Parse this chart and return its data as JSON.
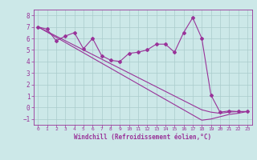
{
  "x_data": [
    0,
    1,
    2,
    3,
    4,
    5,
    6,
    7,
    8,
    9,
    10,
    11,
    12,
    13,
    14,
    15,
    16,
    17,
    18,
    19,
    20,
    21,
    22,
    23
  ],
  "y_main": [
    7.0,
    6.8,
    5.8,
    6.2,
    6.5,
    5.1,
    6.0,
    4.5,
    4.1,
    4.0,
    4.7,
    4.8,
    5.0,
    5.5,
    5.5,
    4.8,
    6.5,
    7.8,
    6.0,
    1.1,
    -0.4,
    -0.3,
    -0.35,
    -0.35
  ],
  "y_line1": [
    7.0,
    6.55,
    6.1,
    5.65,
    5.2,
    4.75,
    4.3,
    3.85,
    3.4,
    2.95,
    2.5,
    2.05,
    1.6,
    1.15,
    0.7,
    0.25,
    -0.2,
    -0.65,
    -1.1,
    -1.0,
    -0.8,
    -0.6,
    -0.5,
    -0.35
  ],
  "y_line2": [
    7.0,
    6.6,
    6.2,
    5.8,
    5.4,
    5.0,
    4.6,
    4.2,
    3.8,
    3.4,
    3.0,
    2.6,
    2.2,
    1.8,
    1.4,
    1.0,
    0.6,
    0.2,
    -0.2,
    -0.4,
    -0.5,
    -0.4,
    -0.35,
    -0.35
  ],
  "color": "#993399",
  "bg_color": "#cce8e8",
  "xlabel": "Windchill (Refroidissement éolien,°C)",
  "xlim": [
    -0.5,
    23.5
  ],
  "ylim": [
    -1.5,
    8.5
  ],
  "xticks": [
    0,
    1,
    2,
    3,
    4,
    5,
    6,
    7,
    8,
    9,
    10,
    11,
    12,
    13,
    14,
    15,
    16,
    17,
    18,
    19,
    20,
    21,
    22,
    23
  ],
  "yticks": [
    -1,
    0,
    1,
    2,
    3,
    4,
    5,
    6,
    7,
    8
  ],
  "grid_color": "#aacccc",
  "marker": "D",
  "markersize": 2.0,
  "linewidth": 0.8
}
